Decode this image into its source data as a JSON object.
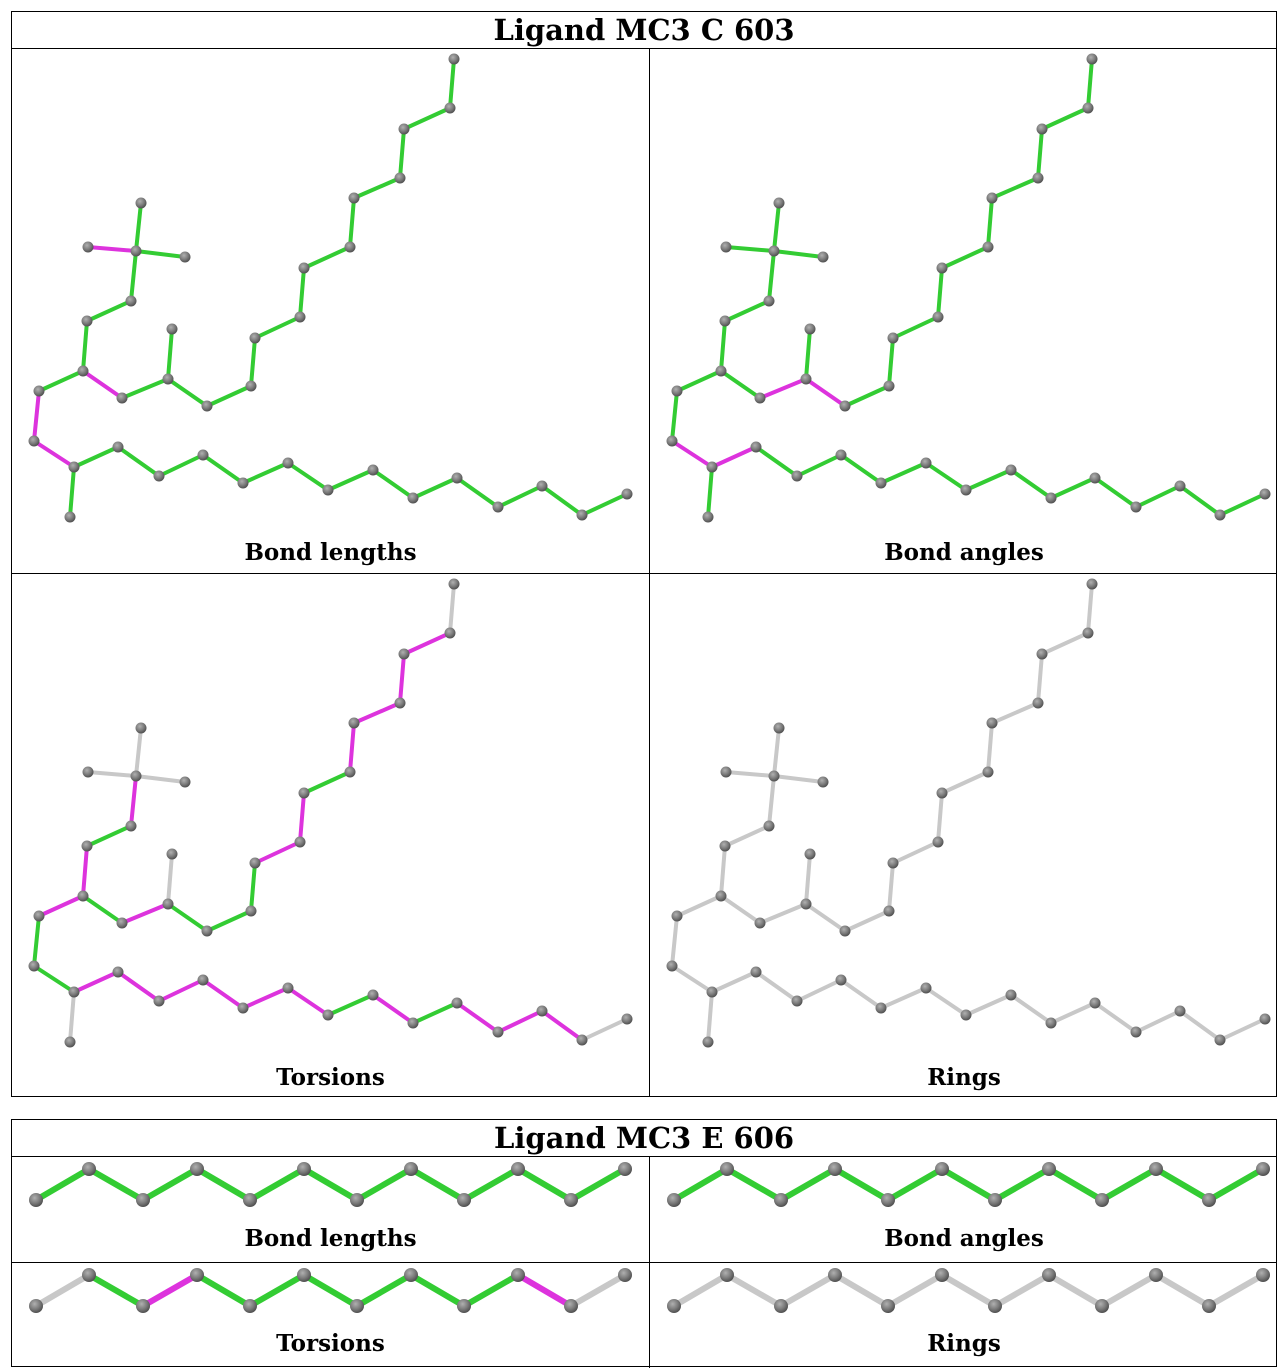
{
  "tables": [
    {
      "title": "Ligand MC3 C 603",
      "captions": [
        "Bond lengths",
        "Bond angles",
        "Torsions",
        "Rings"
      ],
      "panels": [
        {
          "bonds": [
            [
              "453,58",
              "449,107",
              "green"
            ],
            [
              "449,107",
              "403,128",
              "green"
            ],
            [
              "403,128",
              "399,177",
              "green"
            ],
            [
              "399,177",
              "353,197",
              "green"
            ],
            [
              "353,197",
              "349,246",
              "green"
            ],
            [
              "349,246",
              "303,267",
              "green"
            ],
            [
              "303,267",
              "299,316",
              "green"
            ],
            [
              "299,316",
              "254,337",
              "green"
            ],
            [
              "254,337",
              "250,385",
              "green"
            ],
            [
              "250,385",
              "206,405",
              "green"
            ],
            [
              "206,405",
              "167,378",
              "green"
            ],
            [
              "167,378",
              "171,328",
              "green"
            ],
            [
              "167,378",
              "121,397",
              "green"
            ],
            [
              "121,397",
              "82,370",
              "magenta"
            ],
            [
              "82,370",
              "86,320",
              "green"
            ],
            [
              "86,320",
              "130,300",
              "green"
            ],
            [
              "130,300",
              "135,250",
              "green"
            ],
            [
              "135,250",
              "140,202",
              "green"
            ],
            [
              "135,250",
              "87,246",
              "magenta"
            ],
            [
              "135,250",
              "184,256",
              "green"
            ],
            [
              "82,370",
              "38,390",
              "green"
            ],
            [
              "38,390",
              "33,440",
              "magenta"
            ],
            [
              "33,440",
              "73,466",
              "magenta"
            ],
            [
              "73,466",
              "69,516",
              "green"
            ],
            [
              "73,466",
              "117,446",
              "green"
            ],
            [
              "117,446",
              "158,475",
              "green"
            ],
            [
              "158,475",
              "202,454",
              "green"
            ],
            [
              "202,454",
              "242,482",
              "green"
            ],
            [
              "242,482",
              "287,462",
              "green"
            ],
            [
              "287,462",
              "327,489",
              "green"
            ],
            [
              "327,489",
              "372,469",
              "green"
            ],
            [
              "372,469",
              "412,497",
              "green"
            ],
            [
              "412,497",
              "456,477",
              "green"
            ],
            [
              "456,477",
              "497,506",
              "green"
            ],
            [
              "497,506",
              "541,485",
              "green"
            ],
            [
              "541,485",
              "581,514",
              "green"
            ],
            [
              "581,514",
              "626,493",
              "green"
            ]
          ]
        },
        {
          "bonds": [
            [
              "453,58",
              "449,107",
              "green"
            ],
            [
              "449,107",
              "403,128",
              "green"
            ],
            [
              "403,128",
              "399,177",
              "green"
            ],
            [
              "399,177",
              "353,197",
              "green"
            ],
            [
              "353,197",
              "349,246",
              "green"
            ],
            [
              "349,246",
              "303,267",
              "green"
            ],
            [
              "303,267",
              "299,316",
              "green"
            ],
            [
              "299,316",
              "254,337",
              "green"
            ],
            [
              "254,337",
              "250,385",
              "green"
            ],
            [
              "250,385",
              "206,405",
              "green"
            ],
            [
              "206,405",
              "167,378",
              "magenta"
            ],
            [
              "167,378",
              "171,328",
              "green"
            ],
            [
              "167,378",
              "121,397",
              "magenta"
            ],
            [
              "121,397",
              "82,370",
              "green"
            ],
            [
              "82,370",
              "86,320",
              "green"
            ],
            [
              "86,320",
              "130,300",
              "green"
            ],
            [
              "130,300",
              "135,250",
              "green"
            ],
            [
              "135,250",
              "140,202",
              "green"
            ],
            [
              "135,250",
              "87,246",
              "green"
            ],
            [
              "135,250",
              "184,256",
              "green"
            ],
            [
              "82,370",
              "38,390",
              "green"
            ],
            [
              "38,390",
              "33,440",
              "green"
            ],
            [
              "33,440",
              "73,466",
              "magenta"
            ],
            [
              "73,466",
              "69,516",
              "green"
            ],
            [
              "73,466",
              "117,446",
              "magenta"
            ],
            [
              "117,446",
              "158,475",
              "green"
            ],
            [
              "158,475",
              "202,454",
              "green"
            ],
            [
              "202,454",
              "242,482",
              "green"
            ],
            [
              "242,482",
              "287,462",
              "green"
            ],
            [
              "287,462",
              "327,489",
              "green"
            ],
            [
              "327,489",
              "372,469",
              "green"
            ],
            [
              "372,469",
              "412,497",
              "green"
            ],
            [
              "412,497",
              "456,477",
              "green"
            ],
            [
              "456,477",
              "497,506",
              "green"
            ],
            [
              "497,506",
              "541,485",
              "green"
            ],
            [
              "541,485",
              "581,514",
              "green"
            ],
            [
              "581,514",
              "626,493",
              "green"
            ]
          ]
        },
        {
          "bonds": [
            [
              "453,58",
              "449,107",
              "gray"
            ],
            [
              "449,107",
              "403,128",
              "magenta"
            ],
            [
              "403,128",
              "399,177",
              "magenta"
            ],
            [
              "399,177",
              "353,197",
              "magenta"
            ],
            [
              "353,197",
              "349,246",
              "magenta"
            ],
            [
              "349,246",
              "303,267",
              "green"
            ],
            [
              "303,267",
              "299,316",
              "magenta"
            ],
            [
              "299,316",
              "254,337",
              "magenta"
            ],
            [
              "254,337",
              "250,385",
              "green"
            ],
            [
              "250,385",
              "206,405",
              "green"
            ],
            [
              "206,405",
              "167,378",
              "green"
            ],
            [
              "167,378",
              "171,328",
              "gray"
            ],
            [
              "167,378",
              "121,397",
              "magenta"
            ],
            [
              "121,397",
              "82,370",
              "green"
            ],
            [
              "82,370",
              "86,320",
              "magenta"
            ],
            [
              "86,320",
              "130,300",
              "green"
            ],
            [
              "130,300",
              "135,250",
              "magenta"
            ],
            [
              "135,250",
              "140,202",
              "gray"
            ],
            [
              "135,250",
              "87,246",
              "gray"
            ],
            [
              "135,250",
              "184,256",
              "gray"
            ],
            [
              "82,370",
              "38,390",
              "magenta"
            ],
            [
              "38,390",
              "33,440",
              "green"
            ],
            [
              "33,440",
              "73,466",
              "green"
            ],
            [
              "73,466",
              "69,516",
              "gray"
            ],
            [
              "73,466",
              "117,446",
              "magenta"
            ],
            [
              "117,446",
              "158,475",
              "magenta"
            ],
            [
              "158,475",
              "202,454",
              "magenta"
            ],
            [
              "202,454",
              "242,482",
              "magenta"
            ],
            [
              "242,482",
              "287,462",
              "magenta"
            ],
            [
              "287,462",
              "327,489",
              "magenta"
            ],
            [
              "327,489",
              "372,469",
              "green"
            ],
            [
              "372,469",
              "412,497",
              "magenta"
            ],
            [
              "412,497",
              "456,477",
              "green"
            ],
            [
              "456,477",
              "497,506",
              "magenta"
            ],
            [
              "497,506",
              "541,485",
              "magenta"
            ],
            [
              "541,485",
              "581,514",
              "magenta"
            ],
            [
              "581,514",
              "626,493",
              "gray"
            ]
          ]
        },
        {
          "bonds": [
            [
              "453,58",
              "449,107",
              "gray"
            ],
            [
              "449,107",
              "403,128",
              "gray"
            ],
            [
              "403,128",
              "399,177",
              "gray"
            ],
            [
              "399,177",
              "353,197",
              "gray"
            ],
            [
              "353,197",
              "349,246",
              "gray"
            ],
            [
              "349,246",
              "303,267",
              "gray"
            ],
            [
              "303,267",
              "299,316",
              "gray"
            ],
            [
              "299,316",
              "254,337",
              "gray"
            ],
            [
              "254,337",
              "250,385",
              "gray"
            ],
            [
              "250,385",
              "206,405",
              "gray"
            ],
            [
              "206,405",
              "167,378",
              "gray"
            ],
            [
              "167,378",
              "171,328",
              "gray"
            ],
            [
              "167,378",
              "121,397",
              "gray"
            ],
            [
              "121,397",
              "82,370",
              "gray"
            ],
            [
              "82,370",
              "86,320",
              "gray"
            ],
            [
              "86,320",
              "130,300",
              "gray"
            ],
            [
              "130,300",
              "135,250",
              "gray"
            ],
            [
              "135,250",
              "140,202",
              "gray"
            ],
            [
              "135,250",
              "87,246",
              "gray"
            ],
            [
              "135,250",
              "184,256",
              "gray"
            ],
            [
              "82,370",
              "38,390",
              "gray"
            ],
            [
              "38,390",
              "33,440",
              "gray"
            ],
            [
              "33,440",
              "73,466",
              "gray"
            ],
            [
              "73,466",
              "69,516",
              "gray"
            ],
            [
              "73,466",
              "117,446",
              "gray"
            ],
            [
              "117,446",
              "158,475",
              "gray"
            ],
            [
              "158,475",
              "202,454",
              "gray"
            ],
            [
              "202,454",
              "242,482",
              "gray"
            ],
            [
              "242,482",
              "287,462",
              "gray"
            ],
            [
              "287,462",
              "327,489",
              "gray"
            ],
            [
              "327,489",
              "372,469",
              "gray"
            ],
            [
              "372,469",
              "412,497",
              "gray"
            ],
            [
              "412,497",
              "456,477",
              "gray"
            ],
            [
              "456,477",
              "497,506",
              "gray"
            ],
            [
              "497,506",
              "541,485",
              "gray"
            ],
            [
              "541,485",
              "581,514",
              "gray"
            ],
            [
              "581,514",
              "626,493",
              "gray"
            ]
          ]
        }
      ]
    },
    {
      "title": "Ligand MC3 E 606",
      "captions": [
        "Bond lengths",
        "Bond angles",
        "Torsions",
        "Rings"
      ],
      "panels": [
        {
          "colors": [
            "green",
            "green",
            "green",
            "green",
            "green",
            "green",
            "green",
            "green",
            "green",
            "green",
            "green"
          ]
        },
        {
          "colors": [
            "green",
            "green",
            "green",
            "green",
            "green",
            "green",
            "green",
            "green",
            "green",
            "green",
            "green"
          ]
        },
        {
          "colors": [
            "gray",
            "green",
            "magenta",
            "green",
            "green",
            "green",
            "green",
            "green",
            "green",
            "magenta",
            "gray"
          ]
        },
        {
          "colors": [
            "gray",
            "gray",
            "gray",
            "gray",
            "gray",
            "gray",
            "gray",
            "gray",
            "gray",
            "gray",
            "gray"
          ]
        }
      ]
    }
  ],
  "palette": {
    "green": "#33cc33",
    "magenta": "#dd33dd",
    "gray": "#c8c8c8",
    "atom": "#7a7a7a"
  }
}
